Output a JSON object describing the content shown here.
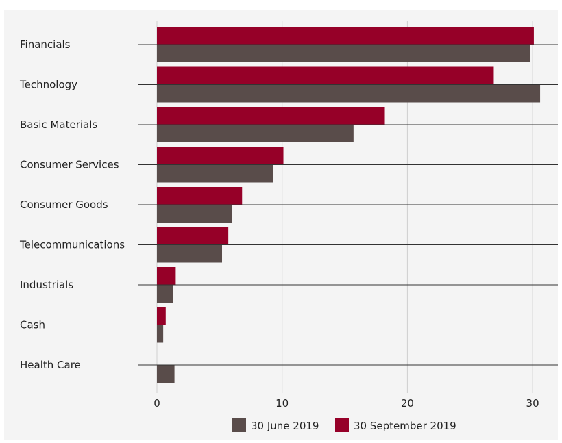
{
  "chart_data": {
    "type": "bar",
    "orientation": "horizontal",
    "categories": [
      "Financials",
      "Technology",
      "Basic Materials",
      "Consumer Services",
      "Consumer Goods",
      "Telecommunications",
      "Industrials",
      "Cash",
      "Health Care"
    ],
    "series": [
      {
        "name": "30 September 2019",
        "color": "#960028",
        "values": [
          30.1,
          26.9,
          18.2,
          10.1,
          6.8,
          5.7,
          1.5,
          0.7,
          0.0
        ]
      },
      {
        "name": "30 June 2019",
        "color": "#594c4a",
        "values": [
          29.8,
          30.6,
          15.7,
          9.3,
          6.0,
          5.2,
          1.3,
          0.5,
          1.4
        ]
      }
    ],
    "xlim": [
      0,
      32
    ],
    "xticks": [
      0,
      10,
      20,
      30
    ],
    "xtick_labels": [
      "0",
      "10",
      "20",
      "30"
    ],
    "legend": {
      "position": "bottom",
      "items": [
        {
          "label": "30 June 2019",
          "color": "#594c4a"
        },
        {
          "label": "30 September 2019",
          "color": "#960028"
        }
      ]
    },
    "grid": true
  }
}
